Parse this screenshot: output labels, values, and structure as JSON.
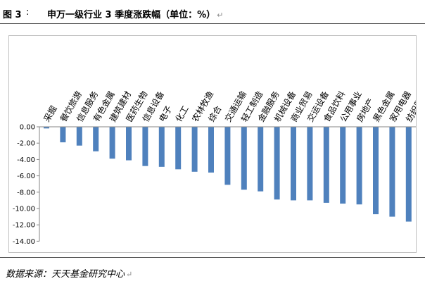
{
  "header": {
    "figure_label": "图 3",
    "colon": ":",
    "title": "申万一级行业 3 季度涨跌幅（单位：%）",
    "para_mark": "↵"
  },
  "source": {
    "text": "数据来源：天天基金研究中心",
    "para_mark": "↵"
  },
  "chart_data": {
    "type": "bar",
    "title": "",
    "xlabel": "",
    "ylabel": "",
    "ylim": [
      -14,
      0
    ],
    "yticks": [
      0,
      -2,
      -4,
      -6,
      -8,
      -10,
      -12,
      -14
    ],
    "ytick_labels": [
      "0.00",
      "-2.00",
      "-4.00",
      "-6.00",
      "-8.00",
      "-10.00",
      "-12.00",
      "-14.00"
    ],
    "grid": false,
    "bar_color": "#4f81bd",
    "categories": [
      "采掘",
      "餐饮旅游",
      "信息服务",
      "有色金属",
      "建筑建材",
      "医药生物",
      "信息设备",
      "电子",
      "化工",
      "农林牧渔",
      "综合",
      "交通运输",
      "轻工制造",
      "金融服务",
      "机械设备",
      "商业贸易",
      "交运设备",
      "食品饮料",
      "公用事业",
      "房地产",
      "黑色金属",
      "家用电器",
      "纺织服装"
    ],
    "values": [
      -0.2,
      -1.9,
      -2.3,
      -3.0,
      -3.9,
      -4.1,
      -4.8,
      -4.9,
      -5.2,
      -5.5,
      -5.6,
      -7.1,
      -7.7,
      -7.9,
      -8.9,
      -9.0,
      -9.0,
      -9.3,
      -9.4,
      -9.5,
      -10.7,
      -11.0,
      -11.6
    ]
  }
}
